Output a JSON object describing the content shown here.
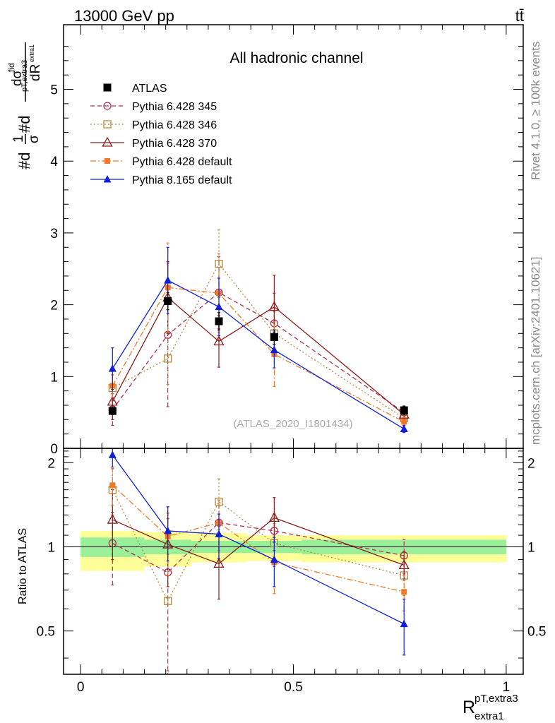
{
  "header": {
    "energy_label": "13000 GeV pp",
    "process_label": "tt̄"
  },
  "side_text": {
    "rivet": "Rivet 4.1.0, ≥ 100k events",
    "mcplots": "mcplots.cern.ch [arXiv:2401.10621]"
  },
  "colors": {
    "atlas": "#000000",
    "p345": "#b03050",
    "p346": "#b08840",
    "p370": "#8b1a1a",
    "p6def": "#f07828",
    "p8def": "#1020d8",
    "band_inner": "#99f099",
    "band_outer": "#ffff99"
  },
  "chart_data": [
    {
      "type": "line",
      "panel": "main",
      "title": "All hadronic channel",
      "watermark": "(ATLAS_2020_I1801434)",
      "ylabel_parts": {
        "prefix": "#d",
        "one": "1",
        "sigma": "σ",
        "mid": "#d",
        "dsig": "dσ",
        "fid_sup": "fid",
        "sub_1": "pT,extra3",
        "sub_2": "extra1",
        "dR": "dR"
      },
      "xlim": [
        -0.04,
        1.04
      ],
      "ylim": [
        0,
        5.9
      ],
      "y_ticks": [
        0,
        1,
        2,
        3,
        4,
        5
      ],
      "y_tick_labels": [
        "0",
        "1",
        "2",
        "3",
        "4",
        "5"
      ],
      "x": [
        0.075,
        0.205,
        0.325,
        0.455,
        0.76
      ],
      "series": [
        {
          "key": "atlas",
          "name": "ATLAS",
          "marker": "square-filled",
          "dash": "none",
          "values": [
            0.52,
            2.05,
            1.77,
            1.55,
            0.53
          ],
          "err": [
            0.05,
            0.12,
            0.12,
            0.1,
            0.06
          ]
        },
        {
          "key": "p345",
          "name": "Pythia 6.428 345",
          "marker": "circle-open",
          "dash": "6,4",
          "values": [
            0.54,
            1.58,
            2.17,
            1.74,
            0.5
          ],
          "err": [
            0.22,
            1.0,
            0.5,
            0.42,
            0.07
          ]
        },
        {
          "key": "p346",
          "name": "Pythia 6.428 346",
          "marker": "square-open",
          "dash": "2,3",
          "values": [
            0.84,
            1.25,
            2.57,
            1.6,
            0.42
          ],
          "err": [
            0.18,
            0.36,
            0.47,
            0.3,
            0.06
          ]
        },
        {
          "key": "p370",
          "name": "Pythia 6.428 370",
          "marker": "triangle-open",
          "dash": "none",
          "values": [
            0.65,
            2.1,
            1.49,
            1.97,
            0.47
          ],
          "err": [
            0.25,
            0.5,
            0.36,
            0.44,
            0.06
          ]
        },
        {
          "key": "p6def",
          "name": "Pythia 6.428 default",
          "marker": "square-filled-small",
          "dash": "8,3,2,3",
          "values": [
            0.87,
            2.24,
            2.16,
            1.31,
            0.37
          ],
          "err": [
            0.16,
            0.62,
            0.55,
            0.45,
            0.06
          ]
        },
        {
          "key": "p8def",
          "name": "Pythia 8.165 default",
          "marker": "triangle-filled",
          "dash": "none",
          "values": [
            1.11,
            2.34,
            1.97,
            1.37,
            0.27
          ],
          "err": [
            0.29,
            0.46,
            0.4,
            0.25,
            0.05
          ]
        }
      ]
    },
    {
      "type": "line",
      "panel": "ratio",
      "ylabel": "Ratio to ATLAS",
      "xlabel_main": "R",
      "xlabel_sup": "pT,extra3",
      "xlabel_sub": "extra1",
      "xlim": [
        -0.04,
        1.04
      ],
      "ylim": [
        0.35,
        2.25
      ],
      "y_ticks": [
        0.5,
        1,
        2
      ],
      "y_tick_labels": [
        "0.5",
        "1",
        "2"
      ],
      "x_ticks": [
        0,
        0.5,
        1
      ],
      "x_tick_labels": [
        "0",
        "0.5",
        "1"
      ],
      "x": [
        0.075,
        0.205,
        0.325,
        0.455,
        0.76
      ],
      "bands": {
        "bins": [
          [
            0.0,
            0.15
          ],
          [
            0.15,
            0.26
          ],
          [
            0.26,
            0.39
          ],
          [
            0.39,
            0.52
          ],
          [
            0.52,
            1.0
          ]
        ],
        "inner": [
          [
            0.92,
            1.08
          ],
          [
            0.94,
            1.06
          ],
          [
            0.95,
            1.05
          ],
          [
            0.95,
            1.05
          ],
          [
            0.94,
            1.06
          ]
        ],
        "outer": [
          [
            0.82,
            1.14
          ],
          [
            0.85,
            1.13
          ],
          [
            0.88,
            1.12
          ],
          [
            0.89,
            1.1
          ],
          [
            0.88,
            1.1
          ]
        ]
      },
      "series": [
        {
          "key": "p345",
          "name": "Pythia 6.428 345",
          "marker": "circle-open",
          "dash": "6,4",
          "values": [
            1.03,
            0.81,
            1.22,
            1.14,
            0.93
          ],
          "err": [
            0.3,
            0.45,
            0.25,
            0.17,
            0.13
          ]
        },
        {
          "key": "p346",
          "name": "Pythia 6.428 346",
          "marker": "square-open",
          "dash": "2,3",
          "values": [
            1.6,
            0.64,
            1.45,
            1.03,
            0.79
          ],
          "err": [
            0.3,
            0.3,
            0.3,
            0.18,
            0.12
          ]
        },
        {
          "key": "p370",
          "name": "Pythia 6.428 370",
          "marker": "triangle-open",
          "dash": "none",
          "values": [
            1.25,
            1.02,
            0.87,
            1.27,
            0.86
          ],
          "err": [
            0.35,
            0.3,
            0.22,
            0.23,
            0.1
          ]
        },
        {
          "key": "p6def",
          "name": "Pythia 6.428 default",
          "marker": "square-filled-small",
          "dash": "8,3,2,3",
          "values": [
            1.66,
            1.09,
            1.22,
            0.88,
            0.69
          ],
          "err": [
            0.25,
            0.3,
            0.25,
            0.2,
            0.1
          ]
        },
        {
          "key": "p8def",
          "name": "Pythia 8.165 default",
          "marker": "triangle-filled",
          "dash": "none",
          "values": [
            2.13,
            1.14,
            1.11,
            0.9,
            0.53
          ],
          "err": [
            0.2,
            0.25,
            0.2,
            0.18,
            0.12
          ]
        }
      ]
    }
  ]
}
